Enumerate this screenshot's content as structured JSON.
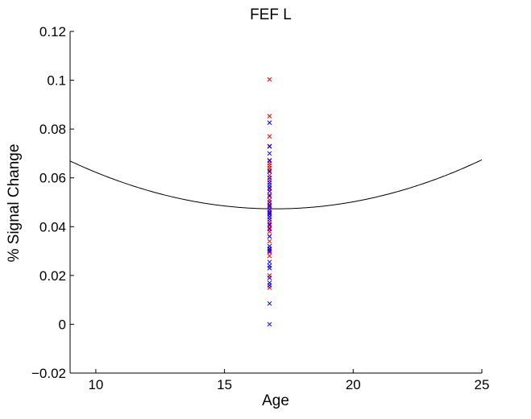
{
  "chart_data": {
    "type": "scatter",
    "title": "FEF L",
    "xlabel": "Age",
    "ylabel": "% Signal Change",
    "xlim": [
      9,
      25
    ],
    "ylim": [
      -0.02,
      0.12
    ],
    "x_ticks": [
      10,
      15,
      20,
      25
    ],
    "x_tick_labels": [
      "10",
      "15",
      "20",
      "25"
    ],
    "y_ticks": [
      -0.02,
      0,
      0.02,
      0.04,
      0.06,
      0.08,
      0.1,
      0.12
    ],
    "y_tick_labels": [
      "−0.02",
      "0",
      "0.02",
      "0.04",
      "0.06",
      "0.08",
      "0.1",
      "0.12"
    ],
    "grid": false,
    "marker": "x",
    "colors": {
      "series_a": "#ff0000",
      "series_b": "#0000ff",
      "fit": "#000000",
      "axis": "#000000"
    },
    "series": [
      {
        "color": "#ff0000",
        "x": [
          16.75,
          16.75,
          16.75,
          16.75,
          16.75,
          16.75,
          16.75,
          16.75,
          16.75,
          16.75,
          16.75,
          16.75,
          16.75,
          16.75,
          16.75,
          16.75,
          16.75,
          16.75,
          16.75,
          16.75,
          16.75,
          16.75,
          16.75,
          16.75,
          16.75,
          16.75,
          16.75,
          16.75,
          16.75,
          16.75
        ],
        "y": [
          0.1003,
          0.0853,
          0.077,
          0.0728,
          0.0672,
          0.066,
          0.065,
          0.064,
          0.063,
          0.061,
          0.059,
          0.0555,
          0.053,
          0.051,
          0.049,
          0.048,
          0.047,
          0.0455,
          0.044,
          0.042,
          0.0405,
          0.0395,
          0.038,
          0.036,
          0.034,
          0.0305,
          0.0295,
          0.028,
          0.02,
          0.015
        ]
      },
      {
        "color": "#0000ff",
        "x": [
          16.75,
          16.75,
          16.75,
          16.75,
          16.75,
          16.75,
          16.75,
          16.75,
          16.75,
          16.75,
          16.75,
          16.75,
          16.75,
          16.75,
          16.75,
          16.75,
          16.75,
          16.75,
          16.75,
          16.75,
          16.75,
          16.75,
          16.75,
          16.75,
          16.75,
          16.75,
          16.75,
          16.75,
          16.75,
          16.75,
          16.75,
          16.75
        ],
        "y": [
          0.0826,
          0.073,
          0.07,
          0.067,
          0.0625,
          0.06,
          0.058,
          0.057,
          0.056,
          0.0545,
          0.0525,
          0.05,
          0.0485,
          0.047,
          0.046,
          0.045,
          0.044,
          0.043,
          0.041,
          0.039,
          0.036,
          0.032,
          0.031,
          0.03,
          0.0255,
          0.024,
          0.023,
          0.019,
          0.017,
          0.016,
          0.0085,
          0.0
        ]
      }
    ],
    "fit_curve": {
      "type": "quadratic",
      "x": [
        9,
        11,
        13,
        15,
        16.8,
        18,
        20,
        22,
        25
      ],
      "y": [
        0.0654,
        0.0594,
        0.0534,
        0.0489,
        0.047,
        0.0472,
        0.0497,
        0.0541,
        0.0684
      ]
    }
  }
}
